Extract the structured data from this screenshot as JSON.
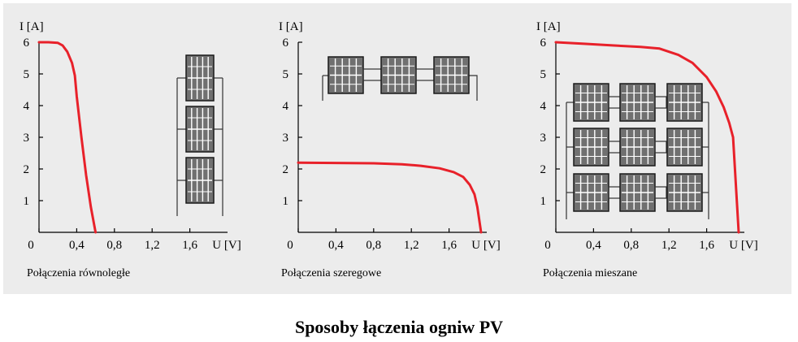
{
  "caption": "Sposoby łączenia ogniw PV",
  "colors": {
    "panel": "#ececec",
    "curve": "#e8212a",
    "cell": "#707070",
    "cell_border": "#1a1a1a",
    "axis": "#000000"
  },
  "chart_data": [
    {
      "type": "line",
      "xlabel": "U [V]",
      "ylabel": "I [A]",
      "xlim": [
        0,
        2.0
      ],
      "ylim": [
        0,
        6
      ],
      "x_ticks": [
        "0",
        "0,4",
        "0,8",
        "1,2",
        "1,6"
      ],
      "y_ticks": [
        "1",
        "2",
        "3",
        "4",
        "5",
        "6"
      ],
      "label": "Połączenia równoległe",
      "icon": "parallel-modules-icon",
      "series": [
        {
          "x": [
            0,
            0.1,
            0.2,
            0.25,
            0.3,
            0.35,
            0.38,
            0.4,
            0.45,
            0.5,
            0.55,
            0.6
          ],
          "y": [
            6.0,
            6.0,
            5.98,
            5.9,
            5.7,
            5.35,
            4.95,
            4.3,
            3.0,
            1.8,
            0.8,
            0.0
          ]
        }
      ]
    },
    {
      "type": "line",
      "xlabel": "U [V]",
      "ylabel": "I [A]",
      "xlim": [
        0,
        2.0
      ],
      "ylim": [
        0,
        6
      ],
      "x_ticks": [
        "0",
        "0,4",
        "0,8",
        "1,2",
        "1,6"
      ],
      "y_ticks": [
        "1",
        "2",
        "3",
        "4",
        "5",
        "6"
      ],
      "label": "Połączenia szeregowe",
      "icon": "series-modules-icon",
      "series": [
        {
          "x": [
            0,
            0.4,
            0.8,
            1.1,
            1.3,
            1.5,
            1.65,
            1.75,
            1.82,
            1.87,
            1.9,
            1.92,
            1.94
          ],
          "y": [
            2.2,
            2.19,
            2.18,
            2.15,
            2.1,
            2.02,
            1.9,
            1.75,
            1.5,
            1.2,
            0.8,
            0.4,
            0.0
          ]
        }
      ]
    },
    {
      "type": "line",
      "xlabel": "U [V]",
      "ylabel": "I [A]",
      "xlim": [
        0,
        2.0
      ],
      "ylim": [
        0,
        6
      ],
      "x_ticks": [
        "0",
        "0,4",
        "0,8",
        "1,2",
        "1,6"
      ],
      "y_ticks": [
        "1",
        "2",
        "3",
        "4",
        "5",
        "6"
      ],
      "label": "Połączenia mieszane",
      "icon": "mixed-modules-icon",
      "series": [
        {
          "x": [
            0,
            0.3,
            0.6,
            0.9,
            1.1,
            1.3,
            1.45,
            1.6,
            1.7,
            1.78,
            1.84,
            1.88,
            1.9,
            1.92,
            1.94
          ],
          "y": [
            6.0,
            5.95,
            5.9,
            5.85,
            5.8,
            5.6,
            5.35,
            4.9,
            4.45,
            3.95,
            3.45,
            3.0,
            2.0,
            1.0,
            0.0
          ]
        }
      ]
    }
  ]
}
